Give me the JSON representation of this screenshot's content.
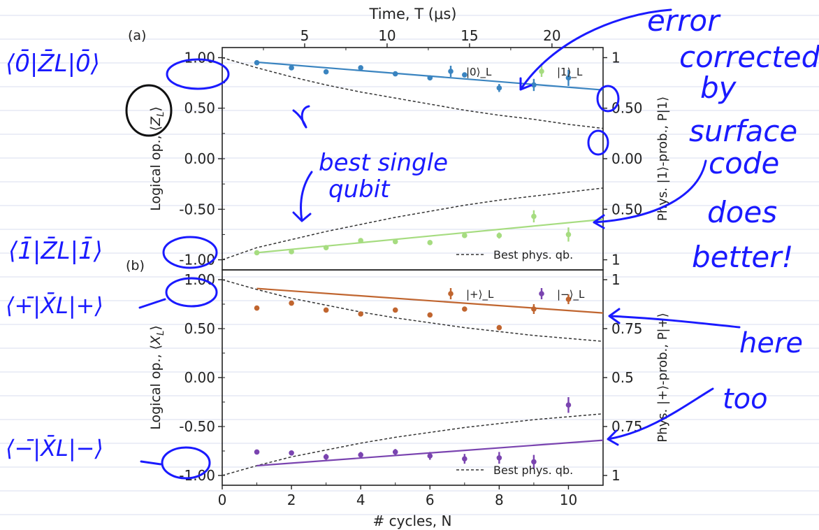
{
  "chart_data": [
    {
      "type": "scatter",
      "panel_label": "(a)",
      "top_axis_label": "Time, T (μs)",
      "top_ticks": [
        "5",
        "10",
        "15",
        "20"
      ],
      "top_tick_values": [
        5,
        10,
        15,
        20
      ],
      "ylabel": "Logical op., ⟨Z_L⟩",
      "ylabel_main": "Logical op., ⟨",
      "ylabel_sym": "Z",
      "ylabel_sub": "L",
      "ylabel_close": "⟩",
      "y2label": "Phys. |1⟩-prob., P|1⟩",
      "xlim": [
        0,
        11
      ],
      "ylim": [
        -1.1,
        1.1
      ],
      "yticks": [
        "1.00",
        "0.50",
        "0.00",
        "-0.50",
        "-1.00"
      ],
      "ytick_values": [
        1.0,
        0.5,
        0.0,
        -0.5,
        -1.0
      ],
      "y2ticks": [
        "1",
        "0.50",
        "0.00",
        "0.50",
        "1"
      ],
      "y2tick_values": [
        1.0,
        0.5,
        0.0,
        -0.5,
        -1.0
      ],
      "legend": [
        "|0⟩_L",
        "|1⟩_L"
      ],
      "legend_best": "Best phys. qb.",
      "series": [
        {
          "name": "|0⟩_L",
          "color": "#3a84c0",
          "x": [
            1,
            2,
            3,
            4,
            5,
            6,
            7,
            8,
            9,
            10
          ],
          "y": [
            0.95,
            0.9,
            0.86,
            0.9,
            0.84,
            0.8,
            0.83,
            0.7,
            0.73,
            0.8
          ],
          "err": [
            0.02,
            0.02,
            0.02,
            0.02,
            0.02,
            0.02,
            0.02,
            0.04,
            0.06,
            0.08
          ],
          "fit": [
            [
              1,
              0.955
            ],
            [
              11,
              0.68
            ]
          ]
        },
        {
          "name": "|1⟩_L",
          "color": "#a6dc80",
          "x": [
            1,
            2,
            3,
            4,
            5,
            6,
            7,
            8,
            9,
            10
          ],
          "y": [
            -0.93,
            -0.92,
            -0.88,
            -0.81,
            -0.82,
            -0.83,
            -0.76,
            -0.76,
            -0.57,
            -0.75
          ],
          "err": [
            0.02,
            0.02,
            0.02,
            0.02,
            0.02,
            0.02,
            0.02,
            0.03,
            0.06,
            0.07
          ],
          "fit": [
            [
              1,
              -0.93
            ],
            [
              11,
              -0.6
            ]
          ]
        }
      ],
      "best_phys": {
        "color": "#333333",
        "upper": [
          [
            0,
            1.0
          ],
          [
            1,
            0.9
          ],
          [
            2,
            0.81
          ],
          [
            3,
            0.73
          ],
          [
            4,
            0.66
          ],
          [
            5,
            0.6
          ],
          [
            6,
            0.54
          ],
          [
            7,
            0.48
          ],
          [
            8,
            0.43
          ],
          [
            9,
            0.39
          ],
          [
            10,
            0.34
          ],
          [
            11,
            0.3
          ]
        ],
        "lower": [
          [
            0,
            -1.0
          ],
          [
            1,
            -0.88
          ],
          [
            2,
            -0.8
          ],
          [
            3,
            -0.72
          ],
          [
            4,
            -0.65
          ],
          [
            5,
            -0.58
          ],
          [
            6,
            -0.52
          ],
          [
            7,
            -0.46
          ],
          [
            8,
            -0.41
          ],
          [
            9,
            -0.37
          ],
          [
            10,
            -0.33
          ],
          [
            11,
            -0.29
          ]
        ]
      }
    },
    {
      "type": "scatter",
      "panel_label": "(b)",
      "xlabel": "#  cycles, N",
      "xticks": [
        "0",
        "2",
        "4",
        "6",
        "8",
        "10"
      ],
      "xtick_values": [
        0,
        2,
        4,
        6,
        8,
        10
      ],
      "ylabel": "Logical op., ⟨X_L⟩",
      "ylabel_main": "Logical op., ⟨",
      "ylabel_sym": "X",
      "ylabel_sub": "L",
      "ylabel_close": "⟩",
      "y2label": "Phys. |+⟩-prob., P|+⟩",
      "xlim": [
        0,
        11
      ],
      "ylim": [
        -1.1,
        1.1
      ],
      "yticks": [
        "1.00",
        "0.50",
        "0.00",
        "-0.50",
        "-1.00"
      ],
      "ytick_values": [
        1.0,
        0.5,
        0.0,
        -0.5,
        -1.0
      ],
      "y2ticks": [
        "1",
        "0.75",
        "0.5",
        "0.75",
        "1"
      ],
      "y2tick_values": [
        1.0,
        0.5,
        0.0,
        -0.5,
        -1.0
      ],
      "legend": [
        "|+⟩_L",
        "|−⟩_L"
      ],
      "legend_best": "Best phys. qb.",
      "series": [
        {
          "name": "|+⟩_L",
          "color": "#c0652f",
          "x": [
            1,
            2,
            3,
            4,
            5,
            6,
            7,
            8,
            9,
            10
          ],
          "y": [
            0.71,
            0.76,
            0.69,
            0.65,
            0.69,
            0.64,
            0.7,
            0.51,
            0.7,
            0.8
          ],
          "err": [
            0.02,
            0.02,
            0.02,
            0.02,
            0.02,
            0.02,
            0.02,
            0.02,
            0.05,
            0.05
          ],
          "fit": [
            [
              1,
              0.91
            ],
            [
              11,
              0.66
            ]
          ]
        },
        {
          "name": "|−⟩_L",
          "color": "#7a44b0",
          "x": [
            1,
            2,
            3,
            4,
            5,
            6,
            7,
            8,
            9,
            10
          ],
          "y": [
            -0.76,
            -0.77,
            -0.81,
            -0.79,
            -0.76,
            -0.8,
            -0.83,
            -0.82,
            -0.86,
            -0.28
          ],
          "err": [
            0.02,
            0.02,
            0.03,
            0.03,
            0.03,
            0.04,
            0.05,
            0.06,
            0.07,
            0.08
          ],
          "fit": [
            [
              1,
              -0.9
            ],
            [
              11,
              -0.64
            ]
          ]
        }
      ],
      "best_phys": {
        "color": "#333333",
        "upper": [
          [
            0,
            1.0
          ],
          [
            1,
            0.9
          ],
          [
            2,
            0.81
          ],
          [
            3,
            0.74
          ],
          [
            4,
            0.67
          ],
          [
            5,
            0.61
          ],
          [
            6,
            0.56
          ],
          [
            7,
            0.51
          ],
          [
            8,
            0.47
          ],
          [
            9,
            0.43
          ],
          [
            10,
            0.4
          ],
          [
            11,
            0.37
          ]
        ],
        "lower": [
          [
            0,
            -1.0
          ],
          [
            1,
            -0.9
          ],
          [
            2,
            -0.81
          ],
          [
            3,
            -0.74
          ],
          [
            4,
            -0.67
          ],
          [
            5,
            -0.61
          ],
          [
            6,
            -0.56
          ],
          [
            7,
            -0.51
          ],
          [
            8,
            -0.47
          ],
          [
            9,
            -0.43
          ],
          [
            10,
            -0.4
          ],
          [
            11,
            -0.37
          ]
        ]
      }
    }
  ],
  "annotations": {
    "color": "#1a1aff",
    "eq_z0": "⟨0̄|Z̄L|0̄⟩",
    "eq_z1": "⟨1̄|Z̄L|1̄⟩",
    "eq_xplus": "⟨+̄|X̄L|+⟩",
    "eq_xminus": "⟨−̄|X̄L|−⟩",
    "best_single_line1": "best single",
    "best_single_line2": "qubit",
    "error_lines": [
      "error",
      "corrected",
      "by",
      "surface",
      "code",
      "does",
      "better!"
    ],
    "here_lines": [
      "here",
      "too"
    ]
  }
}
